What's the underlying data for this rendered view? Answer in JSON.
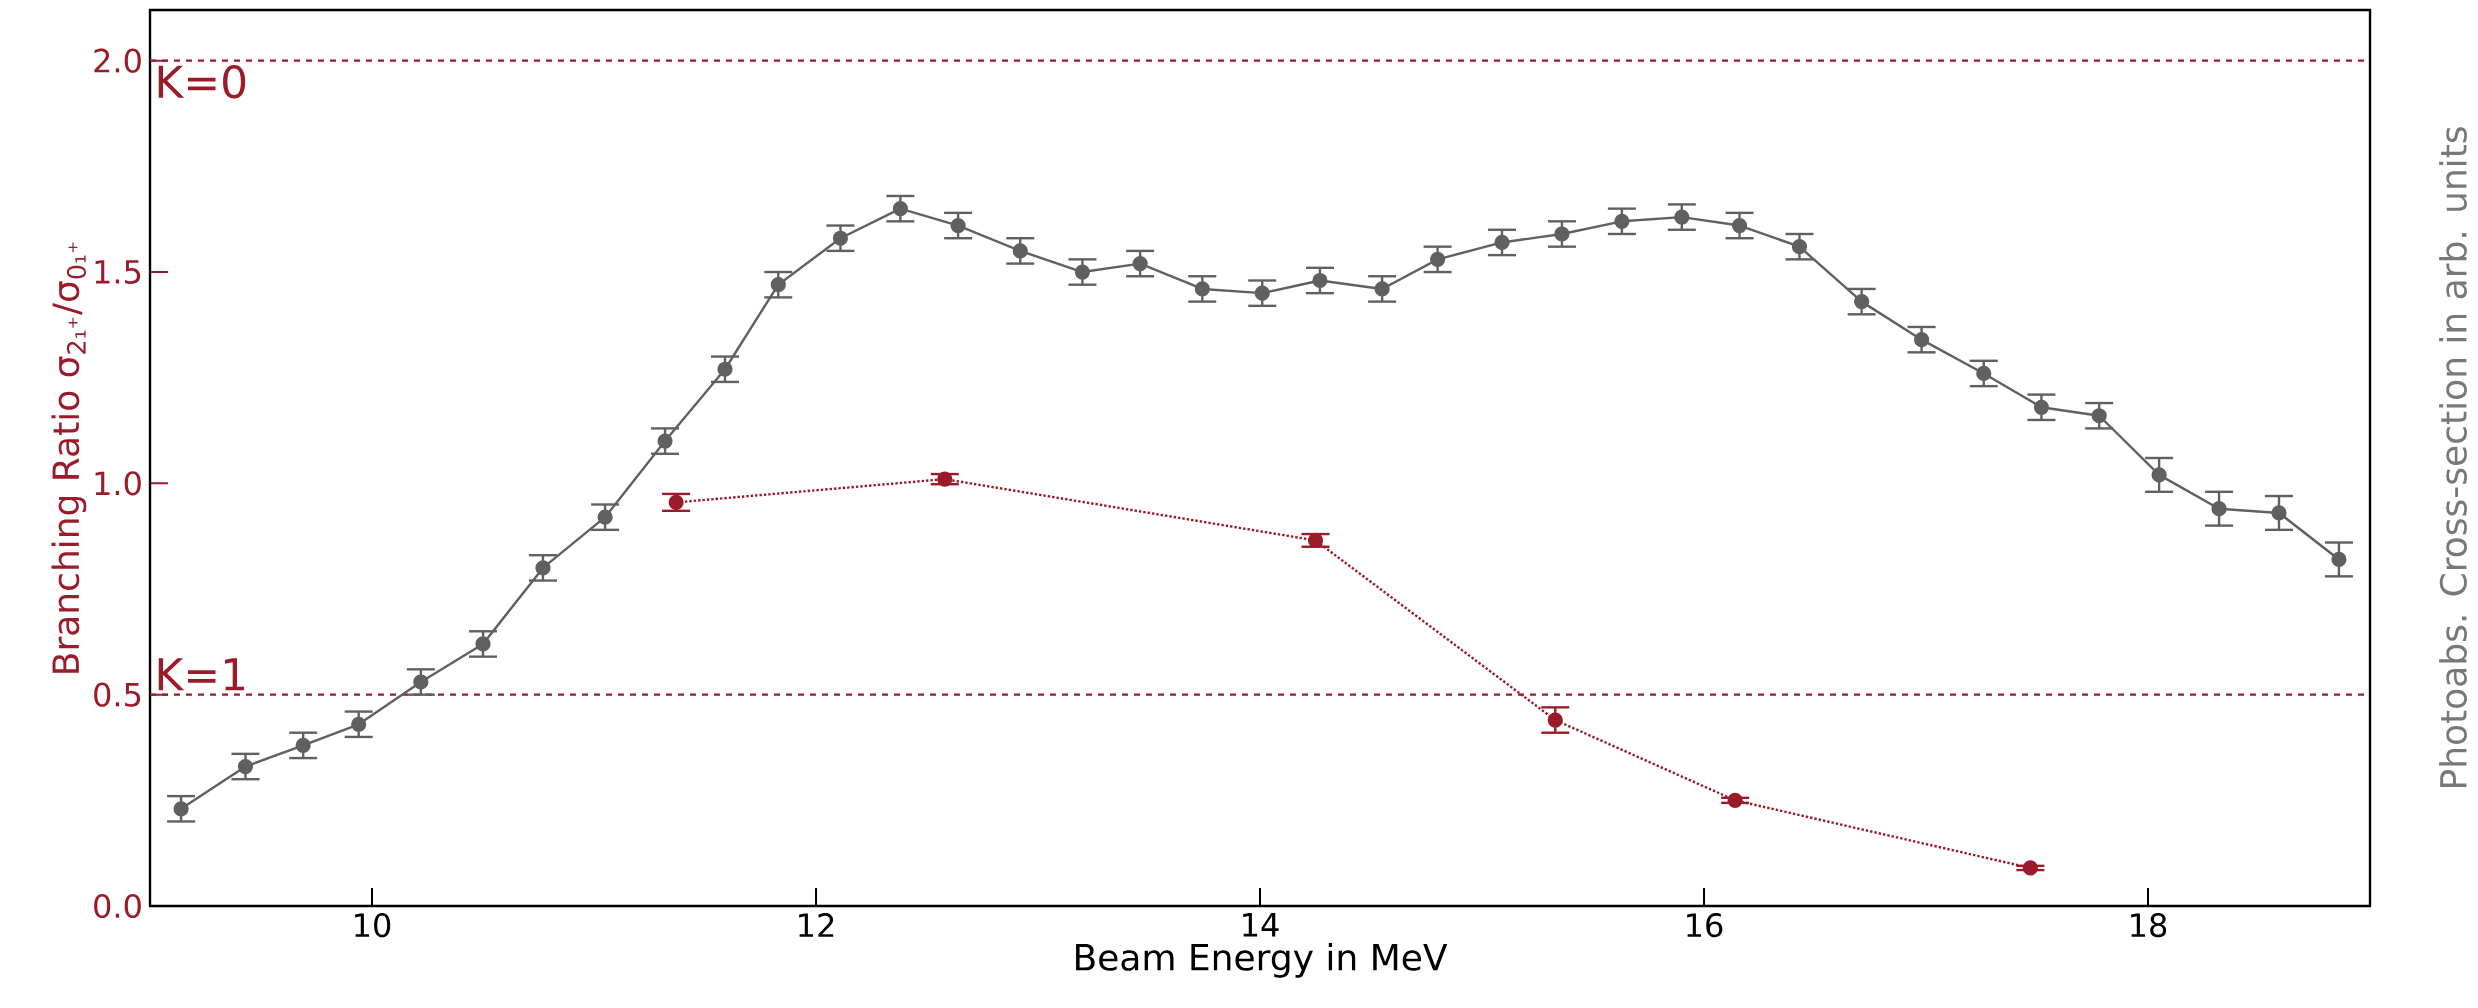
{
  "chart_data": {
    "type": "line",
    "xlabel": "Beam Energy in MeV",
    "ylabel": "Branching Ratio σ$_{2₁⁺}$/σ$_{0₁⁺}$",
    "y2label": "Photoabs. Cross-section in arb. units",
    "xlim": [
      9,
      19
    ],
    "ylim": [
      0,
      2.12
    ],
    "xticks": [
      10,
      12,
      14,
      16,
      18
    ],
    "yticks": [
      {
        "value": 0,
        "label": "0.0"
      },
      {
        "value": 0.5,
        "label": "0.5"
      },
      {
        "value": 1,
        "label": "1.0"
      },
      {
        "value": 1.5,
        "label": "1.5"
      },
      {
        "value": 2,
        "label": "2.0"
      }
    ],
    "grid": false,
    "marker": "circle",
    "ref_lines": [
      {
        "axis": "y",
        "value": 2.0,
        "color": "#9b1b2a",
        "line_style": "dashed"
      },
      {
        "axis": "y",
        "value": 0.5,
        "color": "#9b1b2a",
        "line_style": "dashed"
      }
    ],
    "annotations": [
      {
        "text": "K=0",
        "x": 9,
        "y": 2.0
      },
      {
        "text": "K=1",
        "x": 9,
        "y": 0.5
      }
    ],
    "series": [
      {
        "color": "#606060",
        "line_style": "solid",
        "x": [
          9.14,
          9.43,
          9.69,
          9.94,
          10.22,
          10.5,
          10.77,
          11.05,
          11.32,
          11.59,
          11.83,
          12.11,
          12.38,
          12.64,
          12.92,
          13.2,
          13.46,
          13.74,
          14.01,
          14.27,
          14.55,
          14.8,
          15.09,
          15.36,
          15.63,
          15.9,
          16.16,
          16.43,
          16.71,
          16.98,
          17.26,
          17.52,
          17.78,
          18.05,
          18.32,
          18.59,
          18.86
        ],
        "values": [
          0.23,
          0.33,
          0.38,
          0.43,
          0.53,
          0.62,
          0.8,
          0.92,
          1.1,
          1.27,
          1.47,
          1.58,
          1.65,
          1.61,
          1.55,
          1.5,
          1.52,
          1.46,
          1.45,
          1.48,
          1.46,
          1.53,
          1.57,
          1.59,
          1.62,
          1.63,
          1.61,
          1.56,
          1.43,
          1.34,
          1.26,
          1.18,
          1.16,
          1.02,
          0.94,
          0.93,
          0.82
        ],
        "errors": [
          0.03,
          0.03,
          0.03,
          0.03,
          0.03,
          0.03,
          0.03,
          0.03,
          0.03,
          0.03,
          0.03,
          0.03,
          0.03,
          0.03,
          0.03,
          0.03,
          0.03,
          0.03,
          0.03,
          0.03,
          0.03,
          0.03,
          0.03,
          0.03,
          0.03,
          0.03,
          0.03,
          0.03,
          0.03,
          0.03,
          0.03,
          0.03,
          0.03,
          0.04,
          0.04,
          0.04,
          0.04
        ]
      },
      {
        "color": "#9b1b2a",
        "line_style": "dotted",
        "x": [
          11.37,
          12.58,
          14.25,
          15.33,
          16.14,
          17.47
        ],
        "values": [
          0.955,
          1.01,
          0.865,
          0.44,
          0.25,
          0.09
        ],
        "errors": [
          0.02,
          0.012,
          0.015,
          0.03,
          0.006,
          0.005
        ]
      }
    ]
  }
}
